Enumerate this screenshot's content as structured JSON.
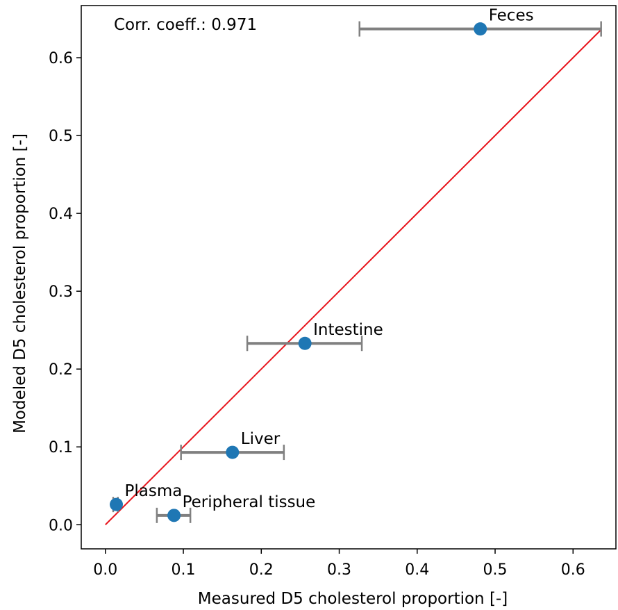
{
  "chart_data": {
    "type": "scatter",
    "title": "",
    "xlabel": "Measured D5 cholesterol proportion [-]",
    "ylabel": "Modeled D5 cholesterol proportion [-]",
    "xlim": [
      -0.031,
      0.655
    ],
    "ylim": [
      -0.031,
      0.667
    ],
    "xticks": [
      "0.0",
      "0.1",
      "0.2",
      "0.3",
      "0.4",
      "0.5",
      "0.6"
    ],
    "yticks": [
      "0.0",
      "0.1",
      "0.2",
      "0.3",
      "0.4",
      "0.5",
      "0.6"
    ],
    "annotation": "Corr. coeff.: 0.971",
    "grid": false,
    "identity_line": {
      "from": 0,
      "to": 0.636,
      "color": "#e8141c"
    },
    "points": [
      {
        "label": "Feces",
        "x": 0.481,
        "y": 0.637,
        "xerr": [
          0.326,
          0.636
        ]
      },
      {
        "label": "Intestine",
        "x": 0.256,
        "y": 0.233,
        "xerr": [
          0.182,
          0.329
        ]
      },
      {
        "label": "Liver",
        "x": 0.163,
        "y": 0.093,
        "xerr": [
          0.097,
          0.229
        ]
      },
      {
        "label": "Plasma",
        "x": 0.014,
        "y": 0.026,
        "xerr": [
          0.01,
          0.016
        ]
      },
      {
        "label": "Peripheral tissue",
        "x": 0.088,
        "y": 0.012,
        "xerr": [
          0.066,
          0.109
        ]
      }
    ],
    "colors": {
      "point": "#1f77b4",
      "errorbar": "#808080",
      "line": "#e8141c"
    }
  }
}
